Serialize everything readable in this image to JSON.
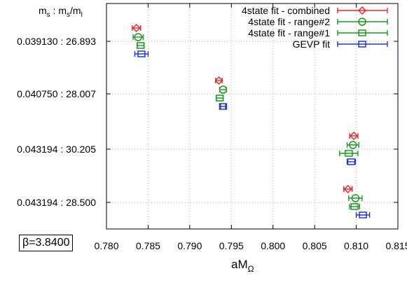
{
  "chart_data": {
    "type": "scatter",
    "orientation": "horizontal-errorbars",
    "xlabel": "aM",
    "xlabel_sub": "Ω",
    "ylabel": {
      "a": "m",
      "a_sub": "s",
      "sep": " : ",
      "b": "m",
      "b_sub": "s",
      "slash": "/m",
      "c_sub": "l"
    },
    "xlim": [
      0.78,
      0.815
    ],
    "xticks": [
      "0.780",
      "0.785",
      "0.790",
      "0.795",
      "0.800",
      "0.805",
      "0.810",
      "0.815"
    ],
    "xtick_values": [
      0.78,
      0.785,
      0.79,
      0.795,
      0.8,
      0.805,
      0.81,
      0.815
    ],
    "categories": [
      "0.039130 : 26.893",
      "0.040750 : 28.007",
      "0.043194 : 30.205",
      "0.043194 : 28.500"
    ],
    "grid": true,
    "legend_position": "top-right",
    "annotation": "β=3.8400",
    "series": [
      {
        "name": "4state fit - combined",
        "color": "#e8282a",
        "marker": "diamond",
        "values": [
          0.7836,
          0.7935,
          0.8097,
          0.809
        ],
        "errors": [
          0.0005,
          0.0004,
          0.0005,
          0.0005
        ]
      },
      {
        "name": "4state fit - range#2",
        "color": "#1a9a1a",
        "marker": "circle",
        "values": [
          0.7838,
          0.794,
          0.8096,
          0.8099
        ],
        "errors": [
          0.0006,
          0.0004,
          0.0007,
          0.0008
        ]
      },
      {
        "name": "4state fit - range#1",
        "color": "#1a9a1a",
        "marker": "square",
        "values": [
          0.7841,
          0.7936,
          0.8091,
          0.8098
        ],
        "errors": [
          0.0004,
          0.0004,
          0.0011,
          0.0006
        ]
      },
      {
        "name": "GEVP fit",
        "color": "#2233dd",
        "marker": "square",
        "values": [
          0.7842,
          0.794,
          0.8094,
          0.8108
        ],
        "errors": [
          0.0008,
          0.0003,
          0.0005,
          0.0008
        ]
      }
    ]
  }
}
